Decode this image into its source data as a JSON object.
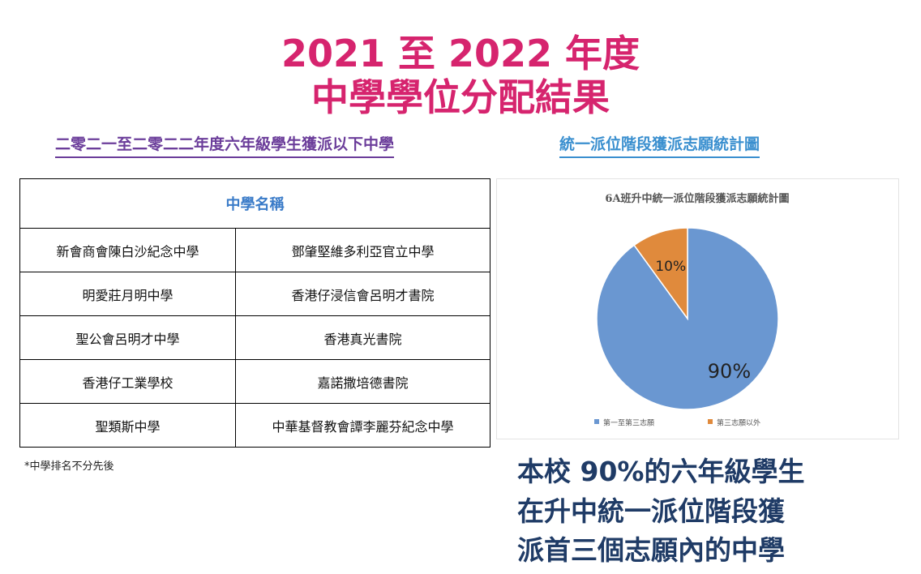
{
  "header": {
    "title_line1": "2021 至 2022 年度",
    "title_line2": "中學學位分配結果"
  },
  "subheadings": {
    "left": "二零二一至二零二二年度六年級學生獲派以下中學",
    "right": "統一派位階段獲派志願統計圖"
  },
  "table": {
    "header": "中學名稱",
    "rows": [
      [
        "新會商會陳白沙紀念中學",
        "鄧肇堅維多利亞官立中學"
      ],
      [
        "明愛莊月明中學",
        "香港仔浸信會呂明才書院"
      ],
      [
        "聖公會呂明才中學",
        "香港真光書院"
      ],
      [
        "香港仔工業學校",
        "嘉諾撒培德書院"
      ],
      [
        "聖類斯中學",
        "中華基督教會譚李麗芬紀念中學"
      ]
    ]
  },
  "footnote": "*中學排名不分先後",
  "chart_data": {
    "type": "pie",
    "title": "6A班升中統一派位階段獲派志願統計圖",
    "categories": [
      "第一至第三志願",
      "第三志願以外"
    ],
    "values": [
      90,
      10
    ],
    "labels": [
      "90%",
      "10%"
    ],
    "colors": [
      "#6a97d1",
      "#e08a3c"
    ],
    "legend_position": "bottom"
  },
  "summary": {
    "line1": "本校 90%的六年級學生",
    "line2": "在升中統一派位階段獲",
    "line3": "派首三個志願內的中學"
  }
}
